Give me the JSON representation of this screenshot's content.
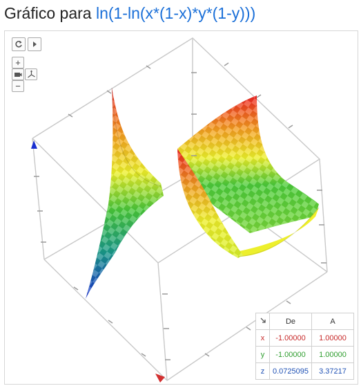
{
  "header": {
    "prefix": "Gráfico para",
    "function": "ln(1-ln(x*(1-x)*y*(1-y)))"
  },
  "toolbar": {
    "reset_icon": "refresh-icon",
    "play_icon": "play-icon",
    "zoom_in_label": "+",
    "zoom_out_label": "−",
    "camera_icon": "camera-icon",
    "axes_icon": "axes-icon"
  },
  "range_table": {
    "corner_icon": "arrow-down-right-icon",
    "headers": [
      "De",
      "A"
    ],
    "rows": [
      {
        "var": "x",
        "from": "-1.00000",
        "to": "1.00000",
        "color": "#c62828"
      },
      {
        "var": "y",
        "from": "-1.00000",
        "to": "1.00000",
        "color": "#2e9d2e"
      },
      {
        "var": "z",
        "from": "0.0725095",
        "to": "3.37217",
        "color": "#1e50b4"
      }
    ]
  },
  "colors": {
    "function_link": "#1a6fd8",
    "surface_high": "#ee2222",
    "surface_mid": "#f2f22a",
    "surface_green": "#3ec83e",
    "surface_low": "#1a2fd0"
  }
}
